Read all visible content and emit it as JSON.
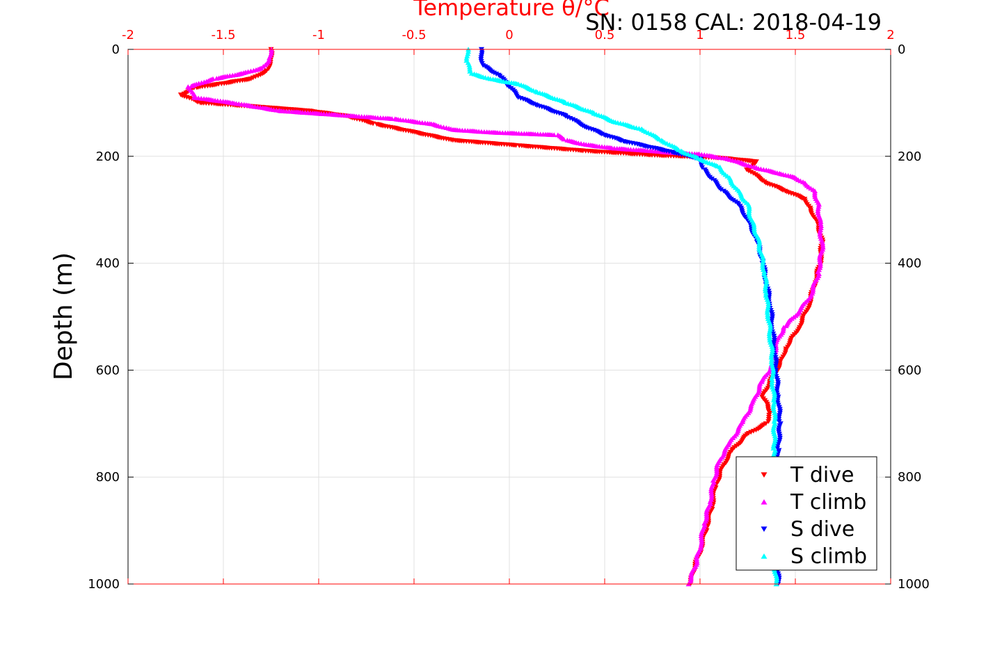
{
  "header": {
    "title": "Temperature θ/°C",
    "subtitle": "SN: 0158  CAL: 2018-04-19"
  },
  "colors": {
    "temperature_axis": "#ff0000",
    "t_dive": "#ff0000",
    "t_climb": "#ff00ff",
    "s_dive": "#0000ff",
    "s_climb": "#00ffff",
    "grid": "#e0e0e0",
    "axis": "#000000"
  },
  "chart_data": {
    "type": "scatter",
    "title": "Temperature θ/°C",
    "subtitle": "SN: 0158  CAL: 2018-04-19",
    "xlabel": "Temperature θ/°C",
    "ylabel": "Depth (m)",
    "xlim": [
      -2,
      2
    ],
    "ylim": [
      1000,
      0
    ],
    "y_reversed": true,
    "grid": true,
    "x_ticks": [
      "-2",
      "-1.5",
      "-1",
      "-0.5",
      "0",
      "0.5",
      "1",
      "1.5",
      "2"
    ],
    "y_ticks_left": [
      "0",
      "200",
      "400",
      "600",
      "800",
      "1000"
    ],
    "y_ticks_right": [
      "0",
      "200",
      "400",
      "600",
      "800",
      "1000"
    ],
    "legend_position": "bottom-right",
    "series": [
      {
        "name": "T dive",
        "marker": "triangle-down",
        "color": "#ff0000",
        "points": [
          [
            -1.25,
            0
          ],
          [
            -1.25,
            20
          ],
          [
            -1.27,
            40
          ],
          [
            -1.35,
            55
          ],
          [
            -1.52,
            65
          ],
          [
            -1.65,
            72
          ],
          [
            -1.72,
            85
          ],
          [
            -1.62,
            100
          ],
          [
            -1.3,
            108
          ],
          [
            -1.05,
            115
          ],
          [
            -0.85,
            125
          ],
          [
            -0.7,
            140
          ],
          [
            -0.5,
            155
          ],
          [
            -0.3,
            170
          ],
          [
            0.05,
            180
          ],
          [
            0.4,
            190
          ],
          [
            0.75,
            198
          ],
          [
            1.1,
            203
          ],
          [
            1.3,
            210
          ],
          [
            1.25,
            225
          ],
          [
            1.35,
            250
          ],
          [
            1.45,
            265
          ],
          [
            1.55,
            280
          ],
          [
            1.58,
            300
          ],
          [
            1.62,
            330
          ],
          [
            1.64,
            360
          ],
          [
            1.63,
            400
          ],
          [
            1.6,
            440
          ],
          [
            1.57,
            480
          ],
          [
            1.52,
            520
          ],
          [
            1.45,
            560
          ],
          [
            1.42,
            590
          ],
          [
            1.37,
            620
          ],
          [
            1.33,
            650
          ],
          [
            1.37,
            680
          ],
          [
            1.35,
            700
          ],
          [
            1.25,
            720
          ],
          [
            1.17,
            750
          ],
          [
            1.12,
            780
          ],
          [
            1.08,
            820
          ],
          [
            1.06,
            860
          ],
          [
            1.03,
            900
          ],
          [
            1.0,
            940
          ],
          [
            0.97,
            970
          ],
          [
            0.95,
            1000
          ]
        ]
      },
      {
        "name": "T climb",
        "marker": "triangle-up",
        "color": "#ff00ff",
        "points": [
          [
            -1.25,
            0
          ],
          [
            -1.26,
            20
          ],
          [
            -1.3,
            35
          ],
          [
            -1.4,
            45
          ],
          [
            -1.55,
            55
          ],
          [
            -1.68,
            70
          ],
          [
            -1.65,
            90
          ],
          [
            -1.45,
            100
          ],
          [
            -1.2,
            115
          ],
          [
            -0.6,
            130
          ],
          [
            -0.4,
            140
          ],
          [
            -0.3,
            150
          ],
          [
            -0.1,
            155
          ],
          [
            0.25,
            160
          ],
          [
            0.3,
            170
          ],
          [
            0.4,
            178
          ],
          [
            0.55,
            185
          ],
          [
            0.75,
            190
          ],
          [
            0.85,
            193
          ],
          [
            1.0,
            196
          ],
          [
            1.15,
            205
          ],
          [
            1.3,
            222
          ],
          [
            1.42,
            232
          ],
          [
            1.5,
            240
          ],
          [
            1.55,
            250
          ],
          [
            1.6,
            265
          ],
          [
            1.62,
            290
          ],
          [
            1.63,
            330
          ],
          [
            1.64,
            370
          ],
          [
            1.62,
            420
          ],
          [
            1.58,
            460
          ],
          [
            1.52,
            490
          ],
          [
            1.44,
            520
          ],
          [
            1.4,
            550
          ],
          [
            1.38,
            590
          ],
          [
            1.32,
            625
          ],
          [
            1.28,
            660
          ],
          [
            1.22,
            700
          ],
          [
            1.15,
            740
          ],
          [
            1.1,
            770
          ],
          [
            1.07,
            810
          ],
          [
            1.05,
            850
          ],
          [
            1.02,
            890
          ],
          [
            1.0,
            930
          ],
          [
            0.98,
            960
          ],
          [
            0.94,
            1000
          ]
        ]
      },
      {
        "name": "S dive",
        "marker": "triangle-down",
        "color": "#0000ff",
        "points": [
          [
            -0.15,
            0
          ],
          [
            -0.14,
            30
          ],
          [
            -0.05,
            50
          ],
          [
            0.0,
            70
          ],
          [
            0.05,
            90
          ],
          [
            0.15,
            105
          ],
          [
            0.3,
            125
          ],
          [
            0.4,
            145
          ],
          [
            0.5,
            160
          ],
          [
            0.6,
            172
          ],
          [
            0.7,
            180
          ],
          [
            0.85,
            192
          ],
          [
            1.0,
            205
          ],
          [
            1.02,
            225
          ],
          [
            1.07,
            245
          ],
          [
            1.12,
            265
          ],
          [
            1.2,
            290
          ],
          [
            1.25,
            320
          ],
          [
            1.3,
            360
          ],
          [
            1.33,
            400
          ],
          [
            1.35,
            440
          ],
          [
            1.37,
            480
          ],
          [
            1.38,
            520
          ],
          [
            1.39,
            560
          ],
          [
            1.4,
            600
          ],
          [
            1.41,
            650
          ],
          [
            1.42,
            700
          ],
          [
            1.41,
            750
          ],
          [
            1.41,
            800
          ],
          [
            1.41,
            850
          ],
          [
            1.41,
            900
          ],
          [
            1.41,
            950
          ],
          [
            1.41,
            1000
          ]
        ]
      },
      {
        "name": "S climb",
        "marker": "triangle-up",
        "color": "#00ffff",
        "points": [
          [
            -0.22,
            0
          ],
          [
            -0.22,
            25
          ],
          [
            -0.2,
            45
          ],
          [
            -0.1,
            55
          ],
          [
            0.05,
            65
          ],
          [
            0.15,
            80
          ],
          [
            0.3,
            100
          ],
          [
            0.45,
            120
          ],
          [
            0.55,
            135
          ],
          [
            0.7,
            150
          ],
          [
            0.8,
            170
          ],
          [
            0.9,
            190
          ],
          [
            1.0,
            205
          ],
          [
            1.1,
            220
          ],
          [
            1.15,
            240
          ],
          [
            1.2,
            265
          ],
          [
            1.25,
            290
          ],
          [
            1.27,
            320
          ],
          [
            1.3,
            350
          ],
          [
            1.32,
            380
          ],
          [
            1.34,
            420
          ],
          [
            1.35,
            460
          ],
          [
            1.36,
            500
          ],
          [
            1.37,
            540
          ],
          [
            1.38,
            580
          ],
          [
            1.38,
            620
          ],
          [
            1.39,
            660
          ],
          [
            1.39,
            700
          ],
          [
            1.39,
            750
          ],
          [
            1.39,
            800
          ],
          [
            1.39,
            850
          ],
          [
            1.39,
            900
          ],
          [
            1.39,
            950
          ],
          [
            1.4,
            1000
          ]
        ]
      }
    ]
  }
}
